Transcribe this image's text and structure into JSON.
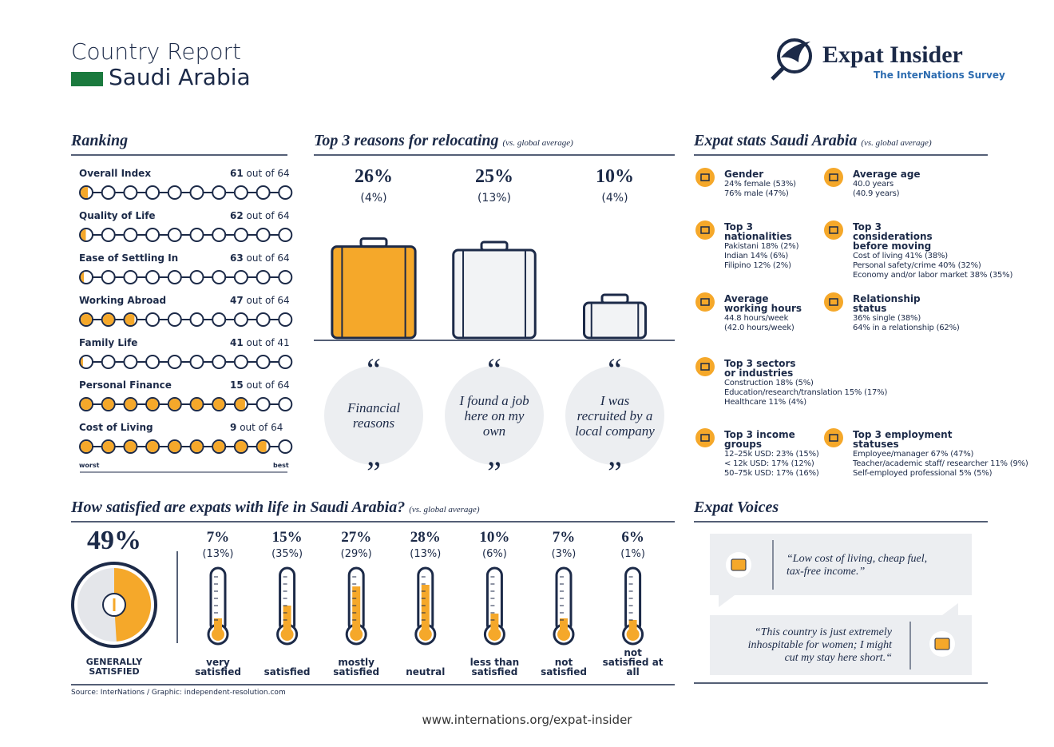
{
  "header": {
    "title": "Country Report",
    "country": "Saudi Arabia",
    "logo": "Expat Insider",
    "logo_sub": "The InterNations Survey"
  },
  "ranking": {
    "title": "Ranking",
    "worst": "worst",
    "best": "best",
    "items": [
      {
        "name": "Overall Index",
        "rank": 61,
        "out_of": "out of",
        "total": 64
      },
      {
        "name": "Quality of Life",
        "rank": 62,
        "out_of": "out of",
        "total": 64
      },
      {
        "name": "Ease of Settling In",
        "rank": 63,
        "out_of": "out of",
        "total": 64
      },
      {
        "name": "Working Abroad",
        "rank": 47,
        "out_of": "out of",
        "total": 64
      },
      {
        "name": "Family Life",
        "rank": 41,
        "out_of": "out of",
        "total": 41
      },
      {
        "name": "Personal Finance",
        "rank": 15,
        "out_of": "out of",
        "total": 64
      },
      {
        "name": "Cost of Living",
        "rank": 9,
        "out_of": "out of",
        "total": 64
      }
    ]
  },
  "reasons": {
    "title": "Top 3 reasons for relocating",
    "note": "(vs. global average)",
    "items": [
      {
        "value": 26,
        "label": "26%",
        "global": "(4%)",
        "text": "Financial reasons"
      },
      {
        "value": 25,
        "label": "25%",
        "global": "(13%)",
        "text": "I found a job here on my own"
      },
      {
        "value": 10,
        "label": "10%",
        "global": "(4%)",
        "text": "I was recruited by a local company"
      }
    ]
  },
  "stats": {
    "title": "Expat stats Saudi Arabia",
    "note": "(vs. global average)",
    "items": [
      {
        "heading": "Gender",
        "lines": [
          "24% female (53%)",
          "76% male (47%)"
        ]
      },
      {
        "heading": "Average age",
        "lines": [
          "40.0 years",
          "(40.9 years)"
        ]
      },
      {
        "heading": "Top 3 nationalities",
        "lines": [
          "Pakistani 18% (2%)",
          "Indian 14% (6%)",
          "Filipino 12% (2%)"
        ]
      },
      {
        "heading": "Top 3 considerations before moving",
        "lines": [
          "Cost of living 41% (38%)",
          "Personal safety/crime 40% (32%)",
          "Economy and/or labor market 38% (35%)"
        ]
      },
      {
        "heading": "Average working hours",
        "lines": [
          "44.8 hours/week",
          "(42.0 hours/week)"
        ]
      },
      {
        "heading": "Relationship status",
        "lines": [
          "36% single (38%)",
          "64% in a relationship (62%)"
        ]
      },
      {
        "heading": "Top 3 sectors or industries",
        "lines": [
          "Construction 18% (5%)",
          "Education/research/translation 15% (17%)",
          "Healthcare 11% (4%)"
        ]
      },
      {
        "heading": "Top 3 income groups",
        "lines": [
          "12–25k USD: 23% (15%)",
          "< 12k USD: 17% (12%)",
          "50–75k USD: 17% (16%)"
        ]
      },
      {
        "heading": "Top 3 employment statuses",
        "lines": [
          "Employee/manager 67% (47%)",
          "Teacher/academic staff/ researcher 11% (9%)",
          "Self-employed professional 5% (5%)"
        ]
      }
    ]
  },
  "satisfaction": {
    "title": "How satisfied are expats with life in Saudi Arabia?",
    "note": "(vs. global average)",
    "overall": {
      "value": 49,
      "label": "49%",
      "text": "GENERALLY SATISFIED"
    },
    "items": [
      {
        "value": 7,
        "label": "7%",
        "global": "(13%)",
        "text": "very satisfied"
      },
      {
        "value": 15,
        "label": "15%",
        "global": "(35%)",
        "text": "satisfied"
      },
      {
        "value": 27,
        "label": "27%",
        "global": "(29%)",
        "text": "mostly satisfied"
      },
      {
        "value": 28,
        "label": "28%",
        "global": "(13%)",
        "text": "neutral"
      },
      {
        "value": 10,
        "label": "10%",
        "global": "(6%)",
        "text": "less than satisfied"
      },
      {
        "value": 7,
        "label": "7%",
        "global": "(3%)",
        "text": "not satisfied"
      },
      {
        "value": 6,
        "label": "6%",
        "global": "(1%)",
        "text": "not satisfied at all"
      }
    ]
  },
  "voices": {
    "title": "Expat Voices",
    "quotes": [
      "“Low cost of living, cheap fuel, tax-free income.”",
      "“This country is just extremely inhospitable for women; I might cut my stay here short.“"
    ]
  },
  "footer": {
    "source": "Source: InterNations / Graphic: independent-resolution.com",
    "url": "www.internations.org/expat-insider"
  }
}
